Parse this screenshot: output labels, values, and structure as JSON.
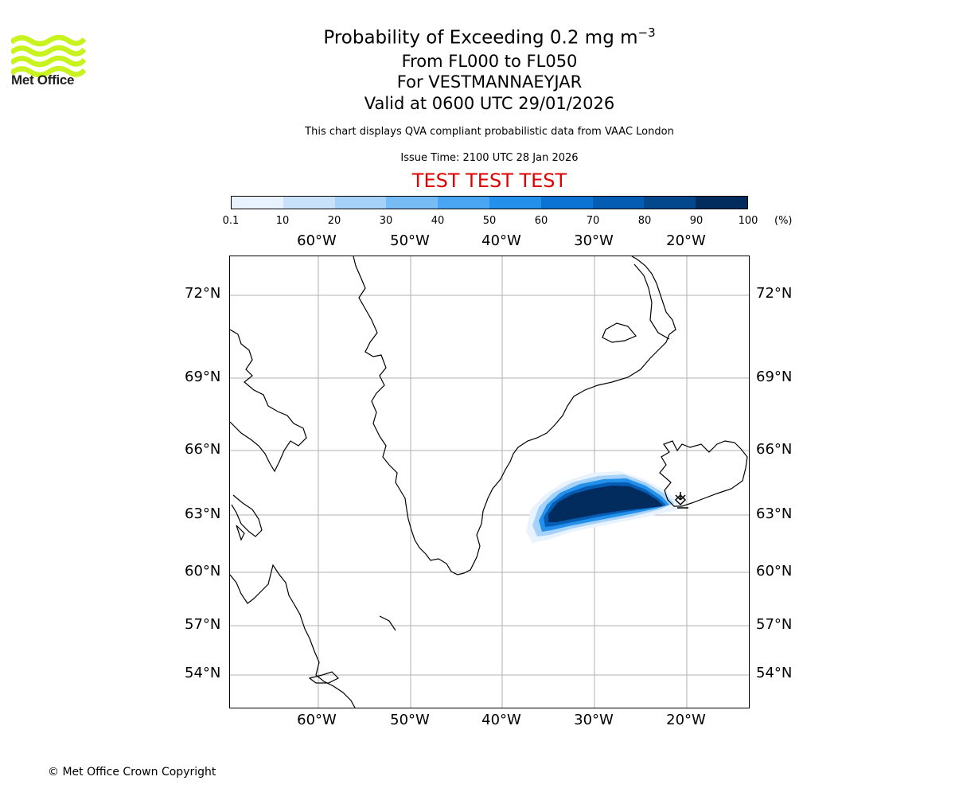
{
  "logo": {
    "text": "Met Office",
    "color": "#c8f31e"
  },
  "title": {
    "line1": "Probability of Exceeding 0.2 mg m",
    "line1_exp": "−3",
    "line2": "From FL000 to FL050",
    "line3": "For VESTMANNAEYJAR",
    "line4": "Valid at 0600 UTC 29/01/2026"
  },
  "subtitle": "This chart displays QVA compliant probabilistic data from VAAC London",
  "issue_time": "Issue Time: 2100 UTC 28 Jan 2026",
  "test_banner": {
    "text": "TEST TEST TEST",
    "color": "#e00000"
  },
  "colorbar": {
    "ticks": [
      "0.1",
      "10",
      "20",
      "30",
      "40",
      "50",
      "60",
      "70",
      "80",
      "90",
      "100"
    ],
    "unit": "(%)",
    "colors": [
      "#e8f3ff",
      "#c8e2fb",
      "#a6d1f8",
      "#77bcf4",
      "#4aa6f2",
      "#2390ec",
      "#0a73d4",
      "#055cb3",
      "#03478d",
      "#022b5e"
    ]
  },
  "map": {
    "lon_labels": [
      "60°W",
      "50°W",
      "40°W",
      "30°W",
      "20°W"
    ],
    "lat_labels": [
      "72°N",
      "69°N",
      "66°N",
      "63°N",
      "60°N",
      "57°N",
      "54°N"
    ]
  },
  "copyright": "© Met Office Crown Copyright"
}
